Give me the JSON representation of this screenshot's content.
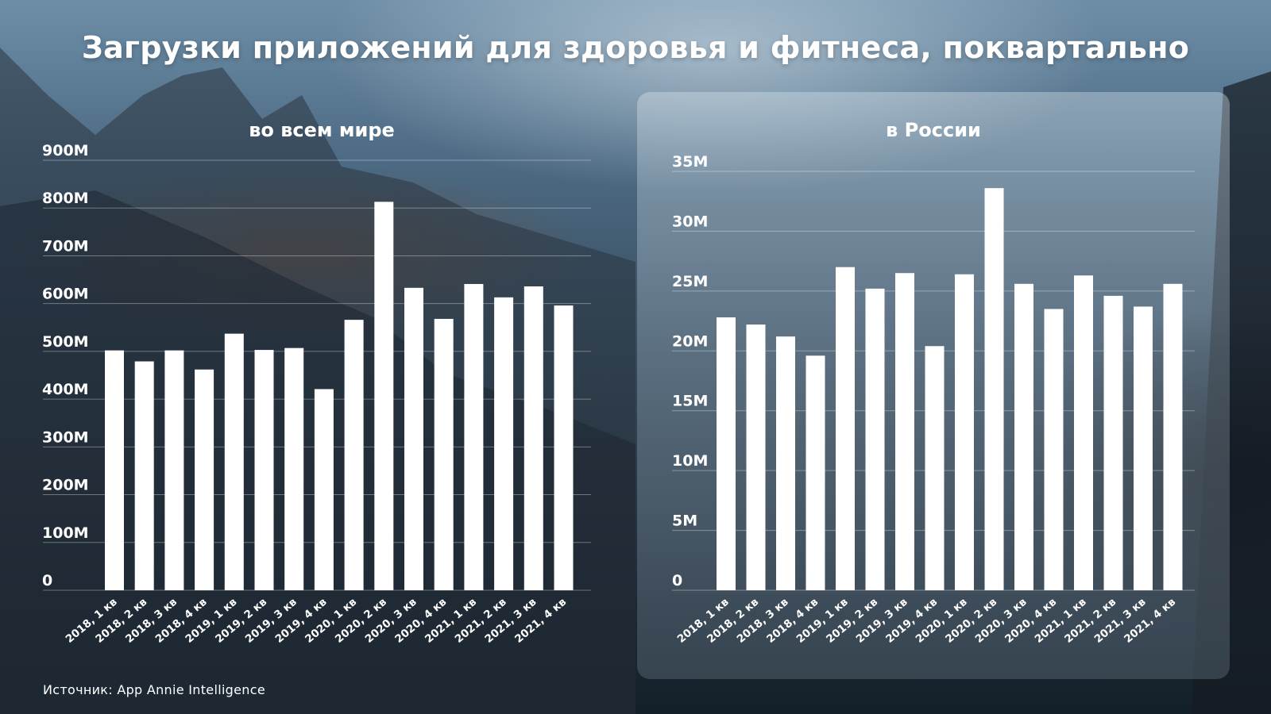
{
  "title": "Загрузки приложений для здоровья и фитнеса, поквартально",
  "source": "Источник: App Annie Intelligence",
  "colors": {
    "bar": "#ffffff",
    "grid": "rgba(255,255,255,0.35)",
    "text": "#ffffff"
  },
  "chart_data": [
    {
      "type": "bar",
      "title": "во всем мире",
      "categories": [
        "2018, 1 кв",
        "2018, 2 кв",
        "2018, 3 кв",
        "2018, 4 кв",
        "2019, 1 кв",
        "2019, 2 кв",
        "2019, 3 кв",
        "2019, 4 кв",
        "2020, 1 кв",
        "2020, 2 кв",
        "2020, 3 кв",
        "2020, 4 кв",
        "2021, 1 кв",
        "2021, 2 кв",
        "2021, 3 кв",
        "2021, 4 кв"
      ],
      "values": [
        502,
        479,
        502,
        462,
        537,
        503,
        507,
        421,
        566,
        813,
        633,
        568,
        641,
        613,
        636,
        596
      ],
      "unit": "M",
      "ylim": [
        0,
        900
      ],
      "yticks": [
        0,
        100,
        200,
        300,
        400,
        500,
        600,
        700,
        800,
        900
      ],
      "ytick_labels": [
        "0",
        "100M",
        "200M",
        "300M",
        "400M",
        "500M",
        "600M",
        "700M",
        "800M",
        "900M"
      ],
      "grid": true
    },
    {
      "type": "bar",
      "title": "в России",
      "categories": [
        "2018, 1 кв",
        "2018, 2 кв",
        "2018, 3 кв",
        "2018, 4 кв",
        "2019, 1 кв",
        "2019, 2 кв",
        "2019, 3 кв",
        "2019, 4 кв",
        "2020, 1 кв",
        "2020, 2 кв",
        "2020, 3 кв",
        "2020, 4 кв",
        "2021, 1 кв",
        "2021, 2 кв",
        "2021, 3 кв",
        "2021, 4 кв"
      ],
      "values": [
        22.8,
        22.2,
        21.2,
        19.6,
        27.0,
        25.2,
        26.5,
        20.4,
        26.4,
        33.6,
        25.6,
        23.5,
        26.3,
        24.6,
        23.7,
        25.6
      ],
      "unit": "M",
      "ylim": [
        0,
        35
      ],
      "yticks": [
        0,
        5,
        10,
        15,
        20,
        25,
        30,
        35
      ],
      "ytick_labels": [
        "0",
        "5M",
        "10M",
        "15M",
        "20M",
        "25M",
        "30M",
        "35M"
      ],
      "grid": true
    }
  ]
}
